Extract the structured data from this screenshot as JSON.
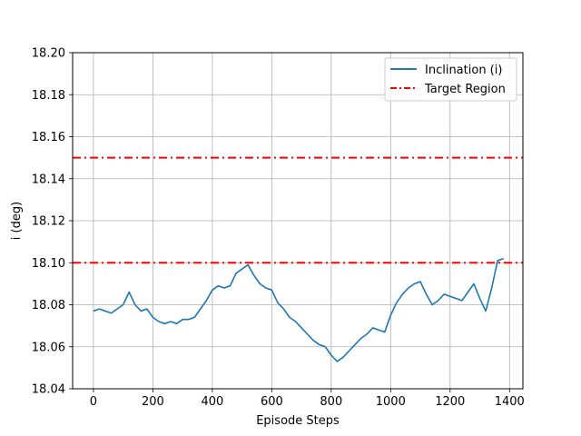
{
  "chart_data": {
    "type": "line",
    "xlabel": "Episode Steps",
    "ylabel": "i (deg)",
    "xlim": [
      -70,
      1445
    ],
    "ylim": [
      18.04,
      18.2
    ],
    "xticks": [
      0,
      200,
      400,
      600,
      800,
      1000,
      1200,
      1400
    ],
    "yticks": [
      18.04,
      18.06,
      18.08,
      18.1,
      18.12,
      18.14,
      18.16,
      18.18,
      18.2
    ],
    "xtick_labels": [
      "0",
      "200",
      "400",
      "600",
      "800",
      "1000",
      "1200",
      "1400"
    ],
    "ytick_labels": [
      "18.04",
      "18.06",
      "18.08",
      "18.10",
      "18.12",
      "18.14",
      "18.16",
      "18.18",
      "18.20"
    ],
    "grid": true,
    "legend_position": "top-right",
    "series": [
      {
        "name": "Inclination (i)",
        "color": "#1f77b4",
        "style": "solid",
        "x": [
          0,
          20,
          40,
          60,
          80,
          100,
          120,
          140,
          160,
          180,
          200,
          220,
          240,
          260,
          280,
          300,
          320,
          340,
          360,
          380,
          400,
          420,
          440,
          460,
          480,
          500,
          520,
          540,
          560,
          580,
          600,
          620,
          640,
          660,
          680,
          700,
          720,
          740,
          760,
          780,
          800,
          820,
          840,
          860,
          880,
          900,
          920,
          940,
          960,
          980,
          1000,
          1020,
          1040,
          1060,
          1080,
          1100,
          1120,
          1140,
          1160,
          1180,
          1200,
          1220,
          1240,
          1260,
          1280,
          1300,
          1320,
          1340,
          1360,
          1380
        ],
        "y": [
          18.077,
          18.078,
          18.077,
          18.076,
          18.078,
          18.08,
          18.086,
          18.08,
          18.077,
          18.078,
          18.074,
          18.072,
          18.071,
          18.072,
          18.071,
          18.073,
          18.073,
          18.074,
          18.078,
          18.082,
          18.087,
          18.089,
          18.088,
          18.089,
          18.095,
          18.097,
          18.099,
          18.094,
          18.09,
          18.088,
          18.087,
          18.081,
          18.078,
          18.074,
          18.072,
          18.069,
          18.066,
          18.063,
          18.061,
          18.06,
          18.056,
          18.053,
          18.055,
          18.058,
          18.061,
          18.064,
          18.066,
          18.069,
          18.068,
          18.067,
          18.075,
          18.081,
          18.085,
          18.088,
          18.09,
          18.091,
          18.085,
          18.08,
          18.082,
          18.085,
          18.084,
          18.083,
          18.082,
          18.086,
          18.09,
          18.083,
          18.077,
          18.088,
          18.101,
          18.102
        ]
      },
      {
        "name": "Target Region",
        "color": "#ff0000",
        "style": "dashdot",
        "hlines": [
          18.1,
          18.15
        ]
      }
    ]
  }
}
